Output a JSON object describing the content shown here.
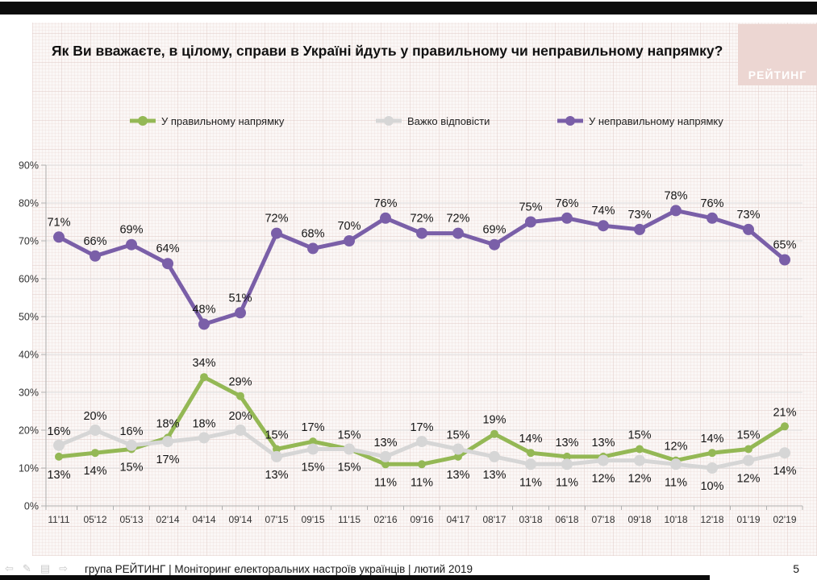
{
  "header": {
    "title": "Як Ви вважаєте, в цілому, справи в Україні йдуть у правильному чи неправильному напрямку?",
    "logo_text": "РЕЙТИНГ",
    "logo_bg_color": "#ecd6d2"
  },
  "footer": {
    "text": "група РЕЙТИНГ |  Моніторинг електоральних настроїв українців | лютий  2019",
    "page_number": "5",
    "icons": [
      {
        "name": "nav-back-icon",
        "glyph": "⇦"
      },
      {
        "name": "edit-pencil-icon",
        "glyph": "✎"
      },
      {
        "name": "notes-icon",
        "glyph": "▤"
      },
      {
        "name": "nav-forward-icon",
        "glyph": "⇨"
      }
    ]
  },
  "chart_data": {
    "type": "line",
    "title": "Як Ви вважаєте, в цілому, справи в Україні йдуть у правильному чи неправильному напрямку?",
    "categories": [
      "11'11",
      "05'12",
      "05'13",
      "02'14",
      "04'14",
      "09'14",
      "07'15",
      "09'15",
      "11'15",
      "02'16",
      "09'16",
      "04'17",
      "08'17",
      "03'18",
      "06'18",
      "07'18",
      "09'18",
      "10'18",
      "12'18",
      "01'19",
      "02'19"
    ],
    "series": [
      {
        "name": "У правильному напрямку",
        "color": "#94b855",
        "values": [
          13,
          14,
          15,
          18,
          34,
          29,
          15,
          17,
          15,
          11,
          11,
          13,
          19,
          14,
          13,
          13,
          15,
          12,
          14,
          15,
          21
        ]
      },
      {
        "name": "Важко відповісти",
        "color": "#d6d6d6",
        "values": [
          16,
          20,
          16,
          17,
          18,
          20,
          13,
          15,
          15,
          13,
          17,
          15,
          13,
          11,
          11,
          12,
          12,
          11,
          10,
          12,
          14
        ]
      },
      {
        "name": "У неправильному напрямку",
        "color": "#7a5fa8",
        "values": [
          71,
          66,
          69,
          64,
          48,
          51,
          72,
          68,
          70,
          76,
          72,
          72,
          69,
          75,
          76,
          74,
          73,
          78,
          76,
          73,
          65
        ]
      }
    ],
    "ylim": [
      0,
      90
    ],
    "y_ticks": [
      "0%",
      "10%",
      "20%",
      "30%",
      "40%",
      "50%",
      "60%",
      "70%",
      "80%",
      "90%"
    ],
    "value_label_suffix": "%",
    "grid": true,
    "legend_position": "top",
    "xlabel": "",
    "ylabel": ""
  }
}
